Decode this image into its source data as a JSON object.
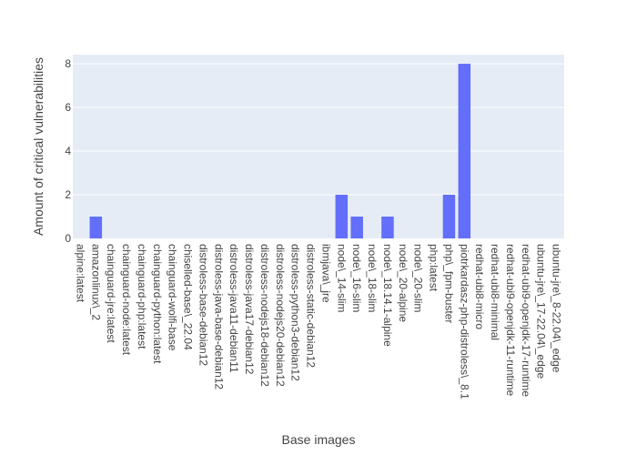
{
  "chart_data": {
    "type": "bar",
    "xlabel": "Base images",
    "ylabel": "Amount of critical vulnerabilities",
    "ylim": [
      0,
      8.42
    ],
    "yticks": [
      0,
      2,
      4,
      6,
      8
    ],
    "grid": true,
    "colors": {
      "bar": "#636efa",
      "plot_bg": "#e5ecf6",
      "grid": "#ffffff",
      "text": "#444444"
    },
    "categories": [
      "alpine:latest",
      "amazonlinux\\_2",
      "chainguard-jre:latest",
      "chainguard-node:latest",
      "chainguard-php:latest",
      "chainguard-python:latest",
      "chainguard-wolfi-base",
      "chiselled-base\\_22.04",
      "distroless-base-debian12",
      "distroless-java-base-debian12",
      "distroless-java11-debian11",
      "distroless-java17-debian12",
      "distroless-nodejs18-debian12",
      "distroless-nodejs20-debian12",
      "distroless-python3-debian12",
      "distroless-static-debian12",
      "ibmjava\\_jre",
      "node\\_14-slim",
      "node\\_16-slim",
      "node\\_18-slim",
      "node\\_18.14.1-alpine",
      "node\\_20-alpine",
      "node\\_20-slim",
      "php:latest",
      "php\\_fpm-buster",
      "piotrkardasz-php-distroless\\_8.1",
      "redhat-ubi8-micro",
      "redhat-ubi8-minimal",
      "redhat-ubi9-openjdk-11-runtime",
      "redhat-ubi9-openjdk-17-runtime",
      "ubuntu-jre\\_17-22.04\\_edge",
      "ubuntu-jre\\_8-22.04\\_edge"
    ],
    "values": [
      0,
      1,
      0,
      0,
      0,
      0,
      0,
      0,
      0,
      0,
      0,
      0,
      0,
      0,
      0,
      0,
      0,
      2,
      1,
      0,
      1,
      0,
      0,
      0,
      2,
      8,
      0,
      0,
      0,
      0,
      0,
      0
    ]
  }
}
